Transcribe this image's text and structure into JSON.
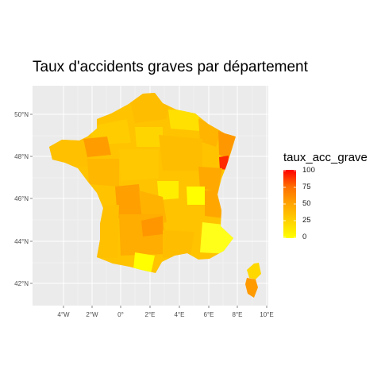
{
  "title": "Taux d'accidents graves par département",
  "legend": {
    "title": "taux_acc_grave",
    "ticks": [
      "100",
      "75",
      "50",
      "25",
      "0"
    ],
    "range": [
      0,
      100
    ],
    "colors": {
      "low": "#ffff00",
      "high": "#ff0000"
    }
  },
  "axes": {
    "x_ticks": [
      "4°W",
      "2°W",
      "0°",
      "2°E",
      "4°E",
      "6°E",
      "8°E",
      "10°E"
    ],
    "y_ticks": [
      "50°N",
      "48°N",
      "46°N",
      "44°N",
      "42°N"
    ],
    "x_values": [
      -4,
      -2,
      0,
      2,
      4,
      6,
      8,
      10
    ],
    "y_values": [
      50,
      48,
      46,
      44,
      42
    ],
    "panel_background": "#ebebeb",
    "grid_color": "#ffffff"
  },
  "map_data": {
    "type": "choropleth",
    "variable": "taux_acc_grave",
    "notable": [
      {
        "area": "Haut-Rhin",
        "value": 90
      },
      {
        "area": "Corse",
        "value": 60
      }
    ]
  }
}
